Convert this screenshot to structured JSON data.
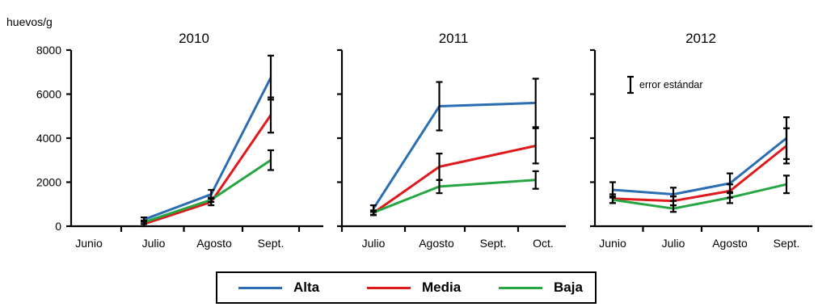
{
  "ylabel": "huevos/g",
  "annotation": "error estándar",
  "colors": {
    "Alta": "#2a6db3",
    "Media": "#e0191c",
    "Baja": "#25a643"
  },
  "legend": [
    "Alta",
    "Media",
    "Baja"
  ],
  "chart_data": [
    {
      "type": "line",
      "title": "2010",
      "ylim": [
        0,
        8000
      ],
      "yticks": [
        0,
        2000,
        4000,
        6000,
        8000
      ],
      "categories": [
        "Junio",
        "Julio",
        "Agosto",
        "Sept."
      ],
      "x": [
        1.35,
        2.45,
        3.5
      ],
      "series": [
        {
          "name": "Alta",
          "values": [
            300,
            1450,
            6750
          ],
          "err": [
            100,
            200,
            1000
          ]
        },
        {
          "name": "Media",
          "values": [
            100,
            1100,
            5050
          ],
          "err": [
            100,
            150,
            800
          ]
        },
        {
          "name": "Baja",
          "values": [
            180,
            1200,
            3000
          ],
          "err": [
            80,
            100,
            450
          ]
        }
      ]
    },
    {
      "type": "line",
      "title": "2011",
      "ylim": [
        0,
        8000
      ],
      "yticks": [],
      "categories": [
        "Julio",
        "Agosto",
        "Sept.",
        "Oct."
      ],
      "x": [
        0.5,
        1.55,
        3.35
      ],
      "series": [
        {
          "name": "Alta",
          "values": [
            800,
            5450,
            5600
          ],
          "err": [
            150,
            1100,
            1100
          ]
        },
        {
          "name": "Media",
          "values": [
            600,
            2700,
            3650
          ],
          "err": [
            100,
            600,
            800
          ]
        },
        {
          "name": "Baja",
          "values": [
            620,
            1800,
            2100
          ],
          "err": [
            100,
            300,
            400
          ]
        }
      ]
    },
    {
      "type": "line",
      "title": "2012",
      "ylim": [
        0,
        8000
      ],
      "yticks": [],
      "categories": [
        "Junio",
        "Julio",
        "Agosto",
        "Sept."
      ],
      "x": [
        0.5,
        1.5,
        2.5,
        3.5
      ],
      "series": [
        {
          "name": "Alta",
          "values": [
            1650,
            1450,
            1950,
            4000
          ],
          "err": [
            350,
            300,
            450,
            950
          ]
        },
        {
          "name": "Media",
          "values": [
            1250,
            1150,
            1600,
            3650
          ],
          "err": [
            200,
            200,
            300,
            800
          ]
        },
        {
          "name": "Baja",
          "values": [
            1200,
            800,
            1300,
            1900
          ],
          "err": [
            150,
            150,
            250,
            400
          ]
        }
      ]
    }
  ]
}
